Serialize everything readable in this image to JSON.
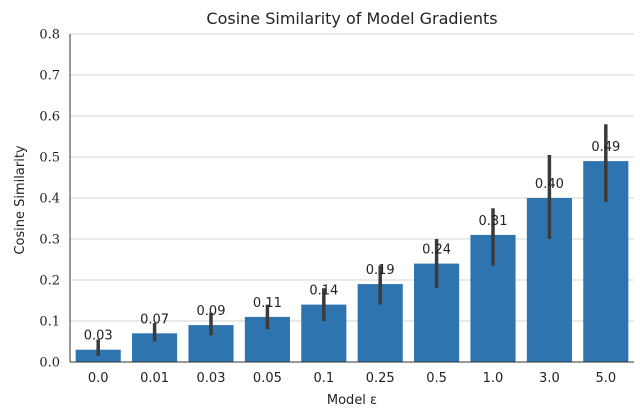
{
  "chart_data": {
    "type": "bar",
    "title": "Cosine Similarity of Model Gradients",
    "xlabel": "Model ε",
    "ylabel": "Cosine Similarity",
    "categories": [
      "0.0",
      "0.01",
      "0.03",
      "0.05",
      "0.1",
      "0.25",
      "0.5",
      "1.0",
      "3.0",
      "5.0"
    ],
    "values": [
      0.03,
      0.07,
      0.09,
      0.11,
      0.14,
      0.19,
      0.24,
      0.31,
      0.4,
      0.49
    ],
    "value_labels": [
      "0.03",
      "0.07",
      "0.09",
      "0.11",
      "0.14",
      "0.19",
      "0.24",
      "0.31",
      "0.40",
      "0.49"
    ],
    "error_low": [
      0.015,
      0.05,
      0.065,
      0.08,
      0.1,
      0.14,
      0.18,
      0.235,
      0.3,
      0.39
    ],
    "error_high": [
      0.055,
      0.095,
      0.12,
      0.14,
      0.18,
      0.235,
      0.3,
      0.375,
      0.505,
      0.58
    ],
    "ylim": [
      0.0,
      0.8
    ],
    "yticks": [
      0.0,
      0.1,
      0.2,
      0.3,
      0.4,
      0.5,
      0.6,
      0.7,
      0.8
    ],
    "ytick_labels": [
      "0.0",
      "0.1",
      "0.2",
      "0.3",
      "0.4",
      "0.5",
      "0.6",
      "0.7",
      "0.8"
    ],
    "grid": "horizontal",
    "colors": {
      "bar": "#2e75b0",
      "error_bar": "#3b3b3b",
      "grid": "#d4d4d4",
      "axis": "#333333"
    }
  }
}
